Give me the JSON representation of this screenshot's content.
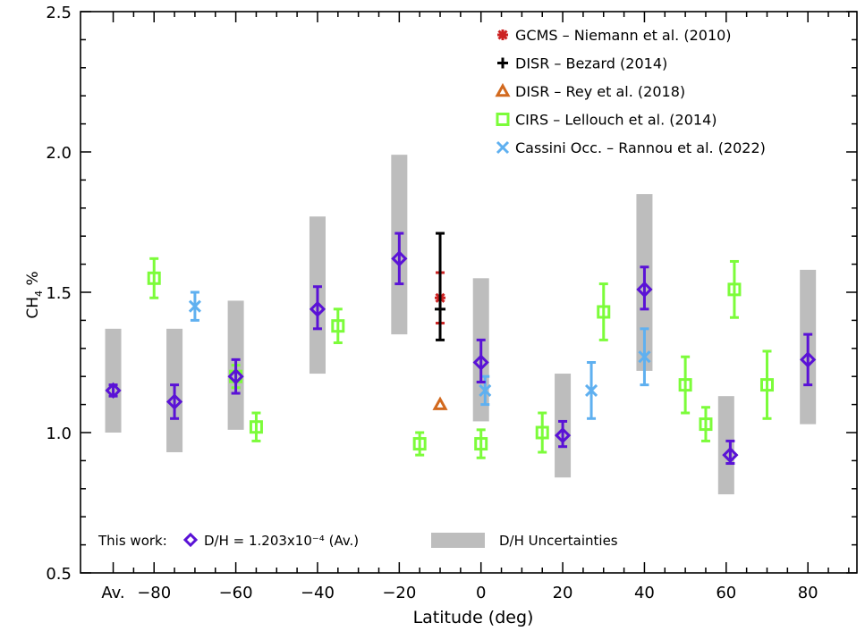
{
  "chart_data": {
    "type": "scatter",
    "xlabel": "Latitude (deg)",
    "ylabel": "CH4 %",
    "ylabel_main": "CH",
    "ylabel_sub": "4",
    "ylabel_tail": " %",
    "ylim": [
      0.5,
      2.5
    ],
    "xlim": [
      -98,
      92
    ],
    "x_ticks": [
      {
        "x": -90,
        "label": "Av."
      },
      {
        "x": -80,
        "label": "−80"
      },
      {
        "x": -60,
        "label": "−60"
      },
      {
        "x": -40,
        "label": "−40"
      },
      {
        "x": -20,
        "label": "−20"
      },
      {
        "x": 0,
        "label": "0"
      },
      {
        "x": 20,
        "label": "20"
      },
      {
        "x": 40,
        "label": "40"
      },
      {
        "x": 60,
        "label": "60"
      },
      {
        "x": 80,
        "label": "80"
      }
    ],
    "y_ticks": [
      {
        "y": 0.5,
        "label": "0.5"
      },
      {
        "y": 1.0,
        "label": "1.0"
      },
      {
        "y": 1.5,
        "label": "1.5"
      },
      {
        "y": 2.0,
        "label": "2.0"
      },
      {
        "y": 2.5,
        "label": "2.5"
      }
    ],
    "uncertainty_bands": [
      {
        "x": -90,
        "y0": 1.0,
        "y1": 1.37
      },
      {
        "x": -75,
        "y0": 0.93,
        "y1": 1.37
      },
      {
        "x": -60,
        "y0": 1.01,
        "y1": 1.47
      },
      {
        "x": -40,
        "y0": 1.21,
        "y1": 1.77
      },
      {
        "x": -20,
        "y0": 1.35,
        "y1": 1.99
      },
      {
        "x": 0,
        "y0": 1.04,
        "y1": 1.55
      },
      {
        "x": 20,
        "y0": 0.84,
        "y1": 1.21
      },
      {
        "x": 40,
        "y0": 1.22,
        "y1": 1.85
      },
      {
        "x": 60,
        "y0": 0.78,
        "y1": 1.13
      },
      {
        "x": 80,
        "y0": 1.03,
        "y1": 1.58
      }
    ],
    "series": [
      {
        "name": "GCMS – Niemann et al. (2010)",
        "marker": "asterisk",
        "color": "#cc2222",
        "points": [
          {
            "x": -10,
            "y": 1.48,
            "ylo": 1.39,
            "yhi": 1.57
          }
        ]
      },
      {
        "name": "DISR – Bezard (2014)",
        "marker": "plus",
        "color": "#000000",
        "points": [
          {
            "x": -10,
            "y": 1.44,
            "ylo": 1.33,
            "yhi": 1.71
          }
        ]
      },
      {
        "name": "DISR – Rey et al. (2018)",
        "marker": "triangle",
        "color": "#d2691e",
        "points": [
          {
            "x": -10,
            "y": 1.1,
            "ylo": 1.1,
            "yhi": 1.1
          }
        ]
      },
      {
        "name": "CIRS – Lellouch et al. (2014)",
        "marker": "square",
        "color": "#7cfc3a",
        "points": [
          {
            "x": -80,
            "y": 1.55,
            "ylo": 1.48,
            "yhi": 1.62
          },
          {
            "x": -60,
            "y": 1.2,
            "ylo": 1.16,
            "yhi": 1.24
          },
          {
            "x": -55,
            "y": 1.02,
            "ylo": 0.97,
            "yhi": 1.07
          },
          {
            "x": -35,
            "y": 1.38,
            "ylo": 1.32,
            "yhi": 1.44
          },
          {
            "x": -15,
            "y": 0.96,
            "ylo": 0.92,
            "yhi": 1.0
          },
          {
            "x": 0,
            "y": 0.96,
            "ylo": 0.91,
            "yhi": 1.01
          },
          {
            "x": 15,
            "y": 1.0,
            "ylo": 0.93,
            "yhi": 1.07
          },
          {
            "x": 30,
            "y": 1.43,
            "ylo": 1.33,
            "yhi": 1.53
          },
          {
            "x": 50,
            "y": 1.17,
            "ylo": 1.07,
            "yhi": 1.27
          },
          {
            "x": 55,
            "y": 1.03,
            "ylo": 0.97,
            "yhi": 1.09
          },
          {
            "x": 62,
            "y": 1.51,
            "ylo": 1.41,
            "yhi": 1.61
          },
          {
            "x": 70,
            "y": 1.17,
            "ylo": 1.05,
            "yhi": 1.29
          }
        ]
      },
      {
        "name": "Cassini Occ. – Rannou et al. (2022)",
        "marker": "x",
        "color": "#5fb0f0",
        "points": [
          {
            "x": -70,
            "y": 1.45,
            "ylo": 1.4,
            "yhi": 1.5
          },
          {
            "x": 1,
            "y": 1.15,
            "ylo": 1.1,
            "yhi": 1.2
          },
          {
            "x": 27,
            "y": 1.15,
            "ylo": 1.05,
            "yhi": 1.25
          },
          {
            "x": 40,
            "y": 1.27,
            "ylo": 1.17,
            "yhi": 1.37
          }
        ]
      },
      {
        "name": "This work: D/H = 1.203x10⁻⁴ (Av.)",
        "marker": "diamond",
        "color": "#5a12d6",
        "points": [
          {
            "x": -90,
            "y": 1.15,
            "ylo": 1.13,
            "yhi": 1.17
          },
          {
            "x": -75,
            "y": 1.11,
            "ylo": 1.05,
            "yhi": 1.17
          },
          {
            "x": -60,
            "y": 1.2,
            "ylo": 1.14,
            "yhi": 1.26
          },
          {
            "x": -40,
            "y": 1.44,
            "ylo": 1.37,
            "yhi": 1.52
          },
          {
            "x": -20,
            "y": 1.62,
            "ylo": 1.53,
            "yhi": 1.71
          },
          {
            "x": 0,
            "y": 1.25,
            "ylo": 1.18,
            "yhi": 1.33
          },
          {
            "x": 20,
            "y": 0.99,
            "ylo": 0.95,
            "yhi": 1.04
          },
          {
            "x": 40,
            "y": 1.51,
            "ylo": 1.44,
            "yhi": 1.59
          },
          {
            "x": 61,
            "y": 0.92,
            "ylo": 0.89,
            "yhi": 0.97
          },
          {
            "x": 80,
            "y": 1.26,
            "ylo": 1.17,
            "yhi": 1.35
          }
        ]
      }
    ],
    "legend": {
      "placement": "top-right",
      "entries": [
        {
          "label": "GCMS – Niemann et al. (2010)",
          "marker": "asterisk",
          "color": "#cc2222"
        },
        {
          "label": "DISR – Bezard (2014)",
          "marker": "plus",
          "color": "#000000"
        },
        {
          "label": "DISR – Rey et al. (2018)",
          "marker": "triangle",
          "color": "#d2691e"
        },
        {
          "label": "CIRS – Lellouch et al. (2014)",
          "marker": "square",
          "color": "#7cfc3a"
        },
        {
          "label": "Cassini Occ. – Rannou et al. (2022)",
          "marker": "x",
          "color": "#5fb0f0"
        }
      ]
    },
    "bottom_legend": {
      "placement": "bottom-left",
      "this_work_prefix": "This work:",
      "this_work_label": "D/H = 1.203x10⁻⁴ (Av.)",
      "this_work_color": "#5a12d6",
      "band_label": "D/H Uncertainties",
      "band_color": "#bdbdbd"
    }
  }
}
